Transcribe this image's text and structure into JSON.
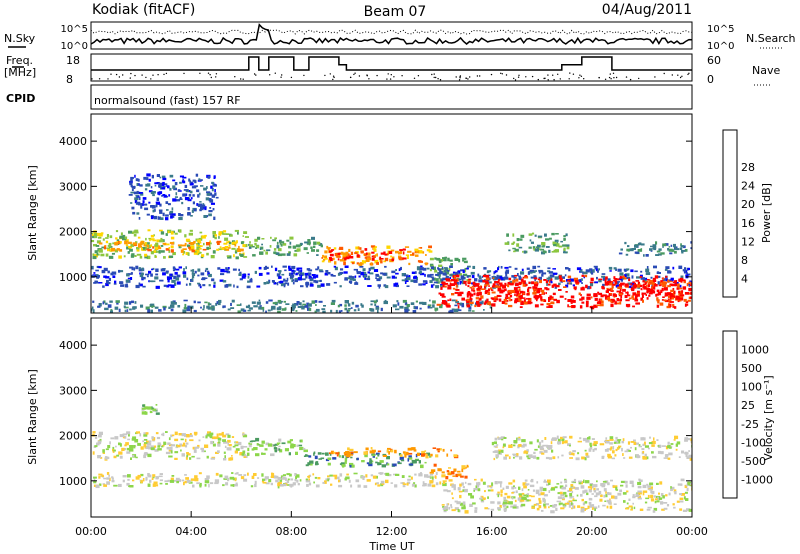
{
  "header": {
    "station": "Kodiak (fitACF)",
    "beam": "Beam 07",
    "date": "04/Aug/2011"
  },
  "summary": {
    "nsky_label": "N.Sky",
    "nsearch_label": "N.Search",
    "freq_label_1": "Freq.",
    "freq_label_2": "[MHz]",
    "nave_label": "Nave",
    "cpid_label": "CPID",
    "cpid_text": "normalsound (fast) 157 RF",
    "noise_ticks_left": [
      "10^5",
      "10^0"
    ],
    "noise_ticks_right": [
      "10^5",
      "10^0"
    ],
    "freq_ticks": [
      "18",
      "8"
    ],
    "nave_ticks": [
      "60",
      "0"
    ]
  },
  "colors": {
    "power": [
      "#0000ff",
      "#2a4bb5",
      "#3a7a8a",
      "#4a9a60",
      "#8cc63f",
      "#ffd700",
      "#ff9900",
      "#ff5a00",
      "#ff0000"
    ],
    "velocity": [
      "#ff0000",
      "#ff5a00",
      "#ff9900",
      "#ffcc33",
      "#c8c8c8",
      "#8cd64a",
      "#4a9a60",
      "#2a4bb5",
      "#0000ff"
    ]
  },
  "chart_data": [
    {
      "type": "heatmap",
      "name": "power",
      "xlabel": "",
      "ylabel": "Slant Range [km]",
      "ylim": [
        200,
        4600
      ],
      "xlim": [
        0,
        24
      ],
      "yticks": [
        "1000",
        "2000",
        "3000",
        "4000"
      ],
      "colorbar_label": "Power [dB]",
      "colorbar_ticks": [
        "4",
        "8",
        "12",
        "16",
        "20",
        "24",
        "28"
      ],
      "bands": [
        {
          "t0": 0.0,
          "t1": 6.2,
          "r0": 1450,
          "r1": 2050,
          "level": 4
        },
        {
          "t0": 0.0,
          "t1": 6.2,
          "r0": 1600,
          "r1": 1800,
          "level": 6
        },
        {
          "t0": 6.2,
          "t1": 9.2,
          "r0": 1500,
          "r1": 1900,
          "level": 3
        },
        {
          "t0": 9.2,
          "t1": 13.5,
          "r0": 1300,
          "r1": 1700,
          "level": 6
        },
        {
          "t0": 9.5,
          "t1": 12.5,
          "r0": 1400,
          "r1": 1650,
          "level": 8
        },
        {
          "t0": 13.5,
          "t1": 15.0,
          "r0": 900,
          "r1": 1450,
          "level": 3
        },
        {
          "t0": 0.0,
          "t1": 24.0,
          "r0": 800,
          "r1": 1250,
          "level": 1
        },
        {
          "t0": 0.0,
          "t1": 16.0,
          "r0": 250,
          "r1": 500,
          "level": 2
        },
        {
          "t0": 13.8,
          "t1": 24.0,
          "r0": 350,
          "r1": 1050,
          "level": 8
        },
        {
          "t0": 15.0,
          "t1": 18.0,
          "r0": 500,
          "r1": 900,
          "level": 8
        },
        {
          "t0": 20.5,
          "t1": 24.0,
          "r0": 450,
          "r1": 950,
          "level": 8
        },
        {
          "t0": 16.5,
          "t1": 19.0,
          "r0": 1550,
          "r1": 2000,
          "level": 3
        },
        {
          "t0": 21.0,
          "t1": 24.0,
          "r0": 1500,
          "r1": 1800,
          "level": 2
        },
        {
          "t0": 1.5,
          "t1": 5.0,
          "r0": 2300,
          "r1": 3300,
          "level": 1
        }
      ]
    },
    {
      "type": "heatmap",
      "name": "velocity",
      "xlabel": "Time UT",
      "ylabel": "Slant Range [km]",
      "ylim": [
        200,
        4600
      ],
      "xlim": [
        0,
        24
      ],
      "xticks": [
        "00:00",
        "04:00",
        "08:00",
        "12:00",
        "16:00",
        "20:00",
        "00:00"
      ],
      "yticks": [
        "1000",
        "2000",
        "3000",
        "4000"
      ],
      "colorbar_label": "Velocity [m s⁻¹]",
      "colorbar_ticks": [
        "1000",
        "500",
        "100",
        "25",
        "-25",
        "-100",
        "-500",
        "-1000"
      ],
      "bands": [
        {
          "t0": 0.0,
          "t1": 6.2,
          "r0": 1500,
          "r1": 2100,
          "level": 4
        },
        {
          "t0": 6.2,
          "t1": 8.5,
          "r0": 1600,
          "r1": 1950,
          "level": 5
        },
        {
          "t0": 8.5,
          "t1": 13.5,
          "r0": 1350,
          "r1": 1650,
          "level": 6
        },
        {
          "t0": 9.5,
          "t1": 14.5,
          "r0": 1550,
          "r1": 1750,
          "level": 2
        },
        {
          "t0": 13.5,
          "t1": 15.0,
          "r0": 1100,
          "r1": 1400,
          "level": 2
        },
        {
          "t0": 14.0,
          "t1": 24.0,
          "r0": 350,
          "r1": 1050,
          "level": 4
        },
        {
          "t0": 0.0,
          "t1": 14.0,
          "r0": 900,
          "r1": 1200,
          "level": 4
        },
        {
          "t0": 16.0,
          "t1": 24.0,
          "r0": 1500,
          "r1": 2000,
          "level": 4
        },
        {
          "t0": 2.0,
          "t1": 2.6,
          "r0": 2500,
          "r1": 2700,
          "level": 5
        }
      ]
    }
  ]
}
